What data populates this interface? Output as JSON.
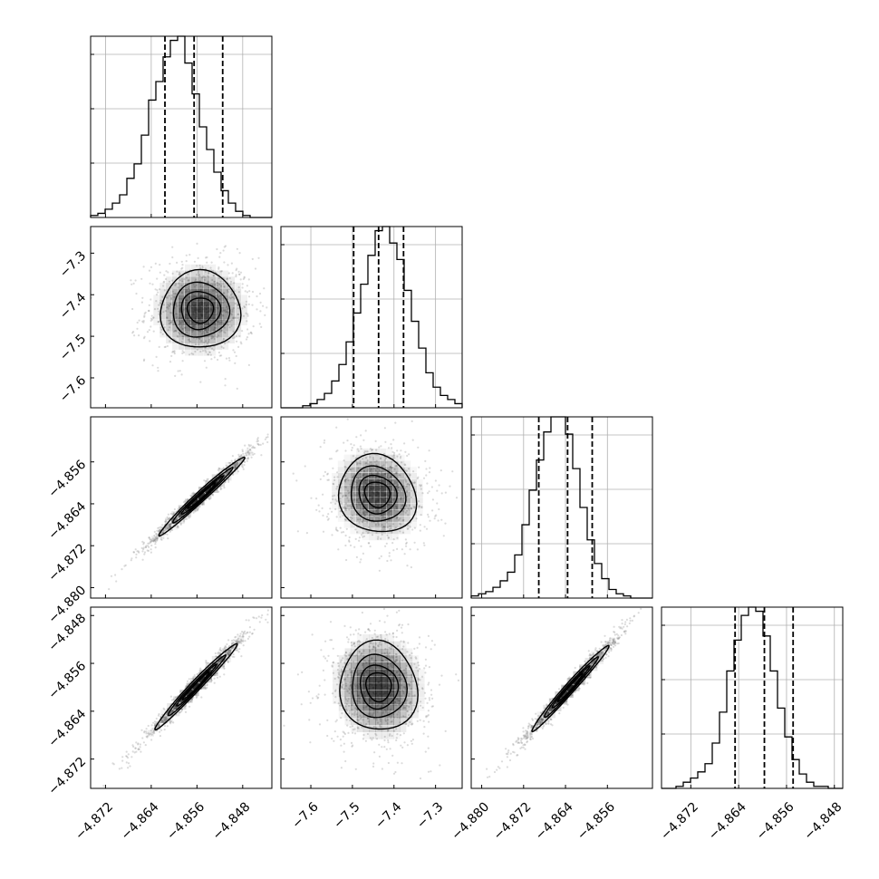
{
  "chart_data": {
    "type": "corner",
    "parameters": [
      {
        "ticks": [
          -4.872,
          -4.864,
          -4.856,
          -4.848
        ],
        "tick_labels": [
          "−4.872",
          "−4.864",
          "−4.856",
          "−4.848"
        ],
        "range": [
          -4.8746,
          -4.8429
        ]
      },
      {
        "ticks": [
          -7.6,
          -7.5,
          -7.4,
          -7.3
        ],
        "tick_labels": [
          "−7.6",
          "−7.5",
          "−7.4",
          "−7.3"
        ],
        "range": [
          -7.672,
          -7.236
        ]
      },
      {
        "ticks": [
          -4.88,
          -4.872,
          -4.864,
          -4.856
        ],
        "tick_labels": [
          "−4.880",
          "−4.872",
          "−4.864",
          "−4.856"
        ],
        "range": [
          -4.882,
          -4.8474
        ]
      },
      {
        "ticks": [
          -4.872,
          -4.864,
          -4.856,
          -4.848
        ],
        "tick_labels": [
          "−4.872",
          "−4.864",
          "−4.856",
          "−4.848"
        ],
        "range": [
          -4.8769,
          -4.8466
        ]
      }
    ],
    "marginals": [
      {
        "index": 0,
        "quantiles": [
          -4.8616,
          -4.8565,
          -4.8515
        ],
        "counts": [
          1,
          2,
          4,
          7,
          11,
          19,
          26,
          40,
          57,
          66,
          78,
          86,
          88,
          75,
          60,
          44,
          33,
          22,
          13,
          7,
          3,
          1,
          0,
          0,
          0
        ]
      },
      {
        "index": 1,
        "quantiles": [
          -7.497,
          -7.437,
          -7.377
        ],
        "counts": [
          0,
          0,
          0,
          1,
          2,
          4,
          7,
          13,
          21,
          32,
          46,
          60,
          74,
          86,
          88,
          80,
          72,
          57,
          42,
          29,
          17,
          10,
          6,
          4,
          2
        ]
      },
      {
        "index": 2,
        "quantiles": [
          -4.8691,
          -4.8636,
          -4.8589
        ],
        "counts": [
          1,
          2,
          3,
          5,
          8,
          12,
          20,
          34,
          50,
          64,
          77,
          84,
          84,
          76,
          60,
          42,
          27,
          16,
          9,
          4,
          2,
          1,
          0,
          0,
          0
        ]
      },
      {
        "index": 3,
        "quantiles": [
          -4.8646,
          -4.8597,
          -4.8549
        ],
        "counts": [
          0,
          0,
          1,
          3,
          5,
          8,
          12,
          22,
          37,
          57,
          72,
          84,
          88,
          86,
          74,
          57,
          39,
          25,
          14,
          7,
          3,
          1,
          1,
          0,
          0
        ]
      }
    ],
    "pairs": [
      {
        "x": 0,
        "y": 1,
        "center": [
          -4.8554,
          -7.437
        ],
        "sd": [
          0.0045,
          0.06
        ],
        "rho": 0.0,
        "contours": [
          0.12,
          0.25,
          0.45,
          0.7
        ]
      },
      {
        "x": 0,
        "y": 2,
        "center": [
          -4.8552,
          -4.8625
        ],
        "sd": [
          0.0048,
          0.0048
        ],
        "rho": 0.985,
        "contours": [
          0.12,
          0.25,
          0.45,
          0.7
        ]
      },
      {
        "x": 1,
        "y": 2,
        "center": [
          -7.44,
          -4.8622
        ],
        "sd": [
          0.06,
          0.0048
        ],
        "rho": -0.1,
        "contours": [
          0.12,
          0.25,
          0.45,
          0.7
        ]
      },
      {
        "x": 0,
        "y": 3,
        "center": [
          -4.8562,
          -4.8598
        ],
        "sd": [
          0.0046,
          0.0046
        ],
        "rho": 0.985,
        "contours": [
          0.12,
          0.25,
          0.45,
          0.7
        ]
      },
      {
        "x": 1,
        "y": 3,
        "center": [
          -7.437,
          -4.8599
        ],
        "sd": [
          0.06,
          0.0048
        ],
        "rho": -0.05,
        "contours": [
          0.12,
          0.25,
          0.45,
          0.7
        ]
      },
      {
        "x": 2,
        "y": 3,
        "center": [
          -4.8631,
          -4.8601
        ],
        "sd": [
          0.0047,
          0.0046
        ],
        "rho": 0.985,
        "contours": [
          0.12,
          0.25,
          0.45,
          0.7
        ]
      }
    ],
    "grid": true,
    "colors": {
      "line": "#000000",
      "grid": "#b0b0b0",
      "points": "#7f7f7f",
      "density": "#000000"
    }
  }
}
